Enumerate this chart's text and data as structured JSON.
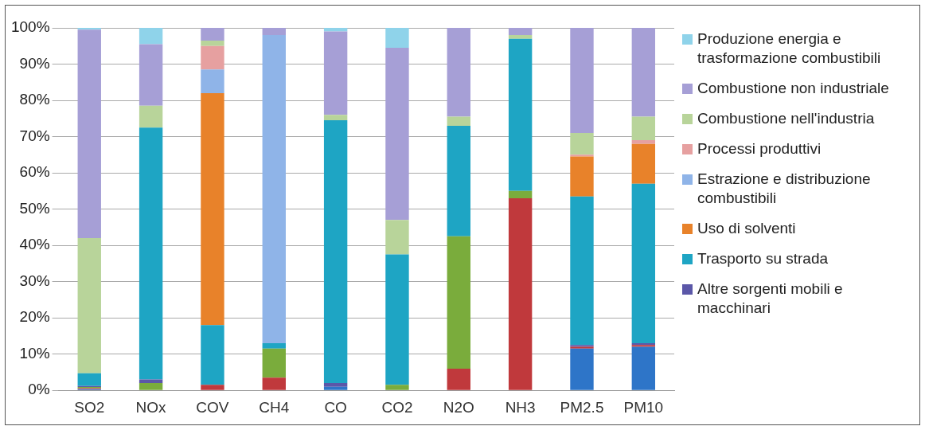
{
  "chart_data": {
    "type": "bar",
    "stacked": true,
    "categories": [
      "SO2",
      "NOx",
      "COV",
      "CH4",
      "CO",
      "CO2",
      "N2O",
      "NH3",
      "PM2.5",
      "PM10"
    ],
    "ylim": [
      0,
      100
    ],
    "yticks": [
      {
        "value": 0,
        "label": "0%"
      },
      {
        "value": 10,
        "label": "10%"
      },
      {
        "value": 20,
        "label": "20%"
      },
      {
        "value": 30,
        "label": "30%"
      },
      {
        "value": 40,
        "label": "40%"
      },
      {
        "value": 50,
        "label": "50%"
      },
      {
        "value": 60,
        "label": "60%"
      },
      {
        "value": 70,
        "label": "70%"
      },
      {
        "value": 80,
        "label": "80%"
      },
      {
        "value": 90,
        "label": "90%"
      },
      {
        "value": 100,
        "label": "100%"
      }
    ],
    "grid": "y",
    "legend": "right",
    "series": [
      {
        "color": "#2e75c8",
        "values": [
          0.3,
          0,
          0,
          0,
          1,
          0,
          0,
          0,
          11.5,
          12
        ]
      },
      {
        "color": "#c0393c",
        "values": [
          0.3,
          0,
          1.5,
          3.5,
          0,
          0,
          6,
          53,
          0.5,
          0.5
        ]
      },
      {
        "color": "#7aac3c",
        "values": [
          0.3,
          2,
          0,
          8,
          0,
          1.5,
          36.5,
          2,
          0,
          0
        ]
      },
      {
        "name": "Altre sorgenti mobili e macchinari",
        "color": "#5b57a8",
        "values": [
          0.3,
          1,
          0,
          0,
          1,
          0,
          0,
          0,
          0.5,
          0.5
        ]
      },
      {
        "name": "Trasporto su strada",
        "color": "#1ea5c4",
        "values": [
          3.5,
          69.5,
          16.5,
          1.5,
          72.5,
          36,
          30.5,
          42,
          41,
          44
        ]
      },
      {
        "name": "Uso di solventi",
        "color": "#e8822a",
        "values": [
          0,
          0,
          64,
          0,
          0,
          0,
          0,
          0,
          11,
          11
        ]
      },
      {
        "name": "Estrazione e distribuzione combustibili",
        "color": "#8fb4e8",
        "values": [
          0,
          0,
          6.5,
          85,
          0,
          0,
          0,
          0,
          0,
          0
        ]
      },
      {
        "name": "Processi produttivi",
        "color": "#e6a0a0",
        "values": [
          0,
          0,
          6.5,
          0,
          0,
          0,
          0,
          0,
          0.5,
          1
        ]
      },
      {
        "name": "Combustione nell'industria",
        "color": "#b8d49a",
        "values": [
          37.3,
          6,
          1.5,
          0,
          1.5,
          9.5,
          2.5,
          1,
          6,
          6.5
        ]
      },
      {
        "name": "Combustione non industriale",
        "color": "#a69fd6",
        "values": [
          57.5,
          17,
          3.5,
          2,
          23,
          47.5,
          24.5,
          2,
          29,
          24.5
        ]
      },
      {
        "name": "Produzione energia e trasformazione combustibili",
        "color": "#8fd3ea",
        "values": [
          0.5,
          4.5,
          0,
          0,
          1,
          5.5,
          0,
          0,
          0,
          0
        ]
      }
    ]
  }
}
